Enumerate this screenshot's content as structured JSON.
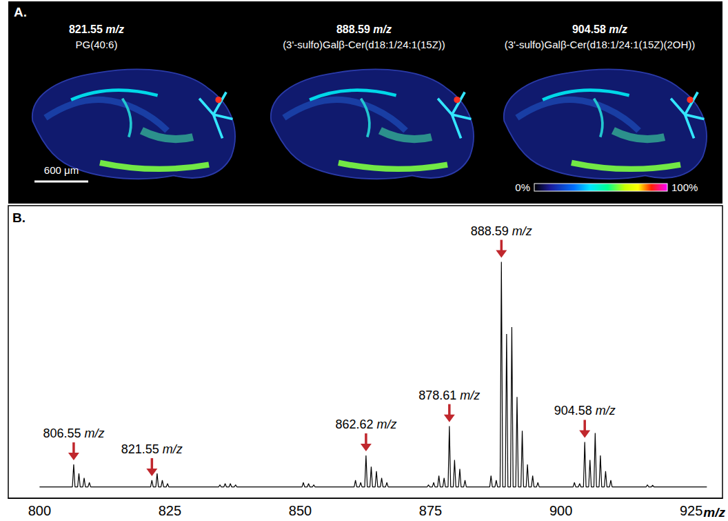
{
  "panel_a": {
    "panel_label": "A.",
    "images": [
      {
        "mz": "821.55",
        "unit": "m/z",
        "name": "PG(40:6)"
      },
      {
        "mz": "888.59",
        "unit": "m/z",
        "name": "(3'-sulfo)Galβ-Cer(d18:1/24:1(15Z))"
      },
      {
        "mz": "904.58",
        "unit": "m/z",
        "name": "(3'-sulfo)Galβ-Cer(d18:1/24:1(15Z)(2OH))"
      }
    ],
    "scale_bar": "600 μm",
    "colorbar": {
      "range": [
        0,
        100
      ],
      "ticks": [
        {
          "value": 0,
          "label": "0%"
        },
        {
          "value": 100,
          "label": "100%"
        }
      ]
    }
  },
  "chart_data": {
    "type": "line",
    "panel_label": "B.",
    "xlabel": "m/z",
    "color": "#000000",
    "marker": "none",
    "grid": false,
    "tick_labels": "x",
    "xlim": [
      794,
      931
    ],
    "xticks": [
      800,
      825,
      850,
      875,
      900,
      925
    ],
    "ylim": [
      -5,
      125
    ],
    "x": [
      800,
      806.3,
      806.55,
      806.8,
      807.3,
      807.55,
      807.8,
      808.3,
      808.55,
      808.8,
      809.3,
      809.55,
      809.8,
      821.3,
      821.55,
      821.8,
      822.3,
      822.55,
      822.8,
      823.3,
      823.55,
      823.8,
      824.3,
      824.55,
      824.8,
      834.35,
      834.6,
      834.85,
      835.35,
      835.6,
      835.85,
      836.35,
      836.6,
      836.85,
      837.35,
      837.6,
      837.85,
      850.35,
      850.6,
      850.85,
      851.35,
      851.6,
      851.85,
      852.35,
      852.6,
      852.85,
      860.35,
      860.6,
      860.85,
      861.35,
      861.6,
      861.85,
      862.37,
      862.62,
      862.87,
      863.37,
      863.62,
      863.87,
      864.37,
      864.62,
      864.87,
      865.37,
      865.62,
      865.87,
      866.37,
      866.62,
      866.87,
      874.35,
      874.6,
      874.85,
      875.35,
      875.6,
      875.85,
      876.35,
      876.6,
      876.85,
      877.35,
      877.6,
      877.85,
      878.36,
      878.61,
      878.86,
      879.36,
      879.61,
      879.86,
      880.36,
      880.61,
      880.86,
      881.36,
      881.61,
      881.86,
      886.35,
      886.6,
      886.85,
      887.35,
      887.6,
      887.85,
      888.34,
      888.59,
      888.84,
      889.34,
      889.59,
      889.84,
      890.34,
      890.59,
      890.84,
      891.34,
      891.59,
      891.84,
      892.34,
      892.59,
      892.84,
      893.34,
      893.59,
      893.84,
      894.34,
      894.59,
      894.84,
      895.34,
      895.59,
      895.84,
      902.35,
      902.6,
      902.85,
      903.35,
      903.6,
      903.85,
      904.33,
      904.58,
      904.83,
      905.33,
      905.58,
      905.83,
      906.33,
      906.58,
      906.83,
      907.33,
      907.58,
      907.83,
      908.33,
      908.58,
      908.83,
      909.33,
      909.58,
      909.83,
      916.35,
      916.6,
      916.85,
      917.35,
      917.6,
      917.85,
      928
    ],
    "values": [
      0,
      0,
      10,
      0,
      0,
      6,
      0,
      0,
      4,
      0,
      0,
      2,
      0,
      0,
      3,
      0,
      0,
      6,
      0,
      0,
      3,
      0,
      0,
      1.5,
      0,
      0,
      1,
      0,
      0,
      1.5,
      0,
      0,
      1.5,
      0,
      0,
      1,
      0,
      0,
      2,
      0,
      0,
      1.5,
      0,
      0,
      1,
      0,
      0,
      3,
      0,
      0,
      2,
      0,
      0,
      14,
      0,
      0,
      9,
      0,
      0,
      7,
      0,
      0,
      4,
      0,
      0,
      2,
      0,
      0,
      1,
      0,
      0,
      2,
      0,
      0,
      5,
      0,
      0,
      4,
      0,
      0,
      27,
      0,
      0,
      12,
      0,
      0,
      8,
      0,
      0,
      3,
      0,
      0,
      5,
      0,
      0,
      3,
      0,
      0,
      100,
      0,
      0,
      68,
      0,
      0,
      71,
      0,
      0,
      40,
      0,
      0,
      25,
      0,
      0,
      10,
      0,
      0,
      5,
      0,
      0,
      2,
      0,
      0,
      2,
      0,
      0,
      1.5,
      0,
      0,
      20,
      0,
      0,
      12,
      0,
      0,
      24,
      0,
      0,
      14,
      0,
      0,
      7,
      0,
      0,
      3,
      0,
      0,
      1,
      0,
      0,
      0.8,
      0,
      0
    ],
    "annotations": [
      {
        "x": 806.55,
        "text": "806.55",
        "unit": "m/z"
      },
      {
        "x": 821.55,
        "text": "821.55",
        "unit": "m/z"
      },
      {
        "x": 862.62,
        "text": "862.62",
        "unit": "m/z"
      },
      {
        "x": 878.61,
        "text": "878.61",
        "unit": "m/z"
      },
      {
        "x": 888.59,
        "text": "888.59",
        "unit": "m/z"
      },
      {
        "x": 904.58,
        "text": "904.58",
        "unit": "m/z"
      }
    ]
  }
}
